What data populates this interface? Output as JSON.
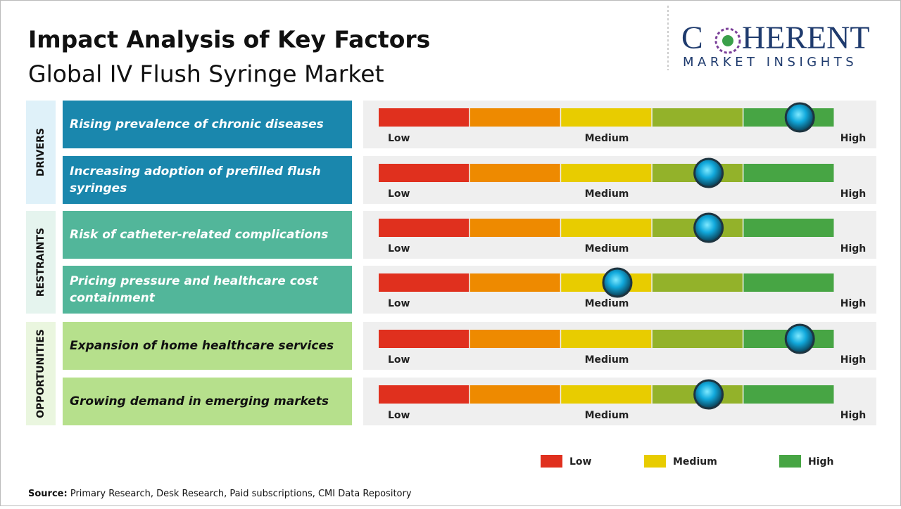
{
  "header": {
    "title": "Impact Analysis of Key Factors",
    "subtitle": "Global IV Flush Syringe Market"
  },
  "logo": {
    "name_start": "C",
    "name_end": "HERENT",
    "tagline": "MARKET INSIGHTS"
  },
  "scale": {
    "labels": [
      "Low",
      "Medium",
      "High"
    ],
    "segments": [
      "#e0301e",
      "#ee8a00",
      "#e8cc00",
      "#93b22a",
      "#47a544"
    ]
  },
  "groups": [
    {
      "label": "DRIVERS",
      "color": "#1a87ad",
      "tint": "#dff1f9",
      "text_color": "#ffffff",
      "factors": [
        {
          "text": "Rising prevalence of chronic diseases",
          "level": 5
        },
        {
          "text": "Increasing adoption of prefilled flush syringes",
          "level": 4
        }
      ]
    },
    {
      "label": "RESTRAINTS",
      "color": "#52b69a",
      "tint": "#e5f4ee",
      "text_color": "#ffffff",
      "factors": [
        {
          "text": "Risk of catheter-related complications",
          "level": 4
        },
        {
          "text": "Pricing pressure and healthcare cost containment",
          "level": 3
        }
      ]
    },
    {
      "label": "OPPORTUNITIES",
      "color": "#b6e08c",
      "tint": "#eaf6df",
      "text_color": "#111111",
      "factors": [
        {
          "text": "Expansion of home healthcare services",
          "level": 5
        },
        {
          "text": "Growing demand in emerging markets",
          "level": 4
        }
      ]
    }
  ],
  "legend": [
    {
      "label": "Low",
      "color": "#e0301e"
    },
    {
      "label": "Medium",
      "color": "#e8cc00"
    },
    {
      "label": "High",
      "color": "#47a544"
    }
  ],
  "source": {
    "label": "Source:",
    "text": "Primary Research, Desk Research, Paid subscriptions, CMI Data Repository"
  }
}
